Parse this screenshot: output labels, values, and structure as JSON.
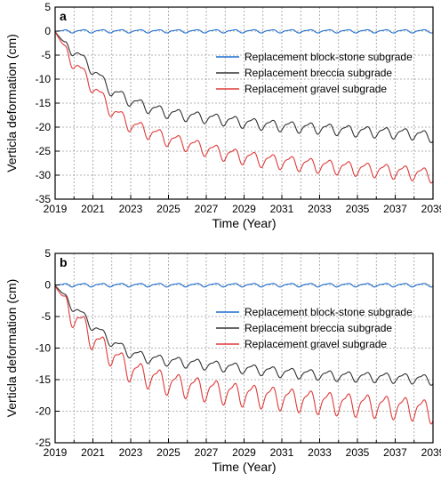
{
  "chart_data": [
    {
      "type": "line",
      "panel_label": "a",
      "xlabel": "Time (Year)",
      "ylabel": "Verticla deformation (cm)",
      "xlim": [
        2019,
        2039
      ],
      "ylim": [
        -35,
        5
      ],
      "xticks": [
        "2019",
        "2021",
        "2023",
        "2025",
        "2027",
        "2029",
        "2031",
        "2033",
        "2035",
        "2037",
        "2039"
      ],
      "yticks": [
        "5",
        "0",
        "-5",
        "-10",
        "-15",
        "-20",
        "-25",
        "-30",
        "-35"
      ],
      "grid": true,
      "legend_position": "upper-right",
      "series": [
        {
          "name": "Replacement block-stone subgrade",
          "color": "#1f6fd1",
          "x": [
            2019,
            2039
          ],
          "y": [
            0,
            0
          ],
          "oscillation": 0.3
        },
        {
          "name": "Replacement breccia subgrade",
          "color": "#333333",
          "x": [
            2019,
            2019.5,
            2020,
            2020.5,
            2021,
            2022,
            2023,
            2024,
            2025,
            2026,
            2027,
            2028,
            2029,
            2030,
            2031,
            2032,
            2033,
            2034,
            2035,
            2036,
            2037,
            2038,
            2039
          ],
          "y": [
            0,
            -3,
            -4,
            -6,
            -8,
            -12.5,
            -14.5,
            -16,
            -17,
            -17.6,
            -18,
            -18.5,
            -19,
            -19.4,
            -19.7,
            -20,
            -20.2,
            -20.5,
            -20.8,
            -21,
            -21.2,
            -21.4,
            -22
          ],
          "oscillation": 1.0
        },
        {
          "name": "Replacement gravel subgrade",
          "color": "#e03a3a",
          "x": [
            2019,
            2019.5,
            2020,
            2020.5,
            2021,
            2022,
            2023,
            2024,
            2025,
            2026,
            2027,
            2028,
            2029,
            2030,
            2031,
            2032,
            2033,
            2034,
            2035,
            2036,
            2037,
            2038,
            2039
          ],
          "y": [
            0,
            -4,
            -6.5,
            -9,
            -11.5,
            -16.5,
            -19.5,
            -21,
            -22.5,
            -23.5,
            -24.5,
            -25.5,
            -26.2,
            -26.8,
            -27.2,
            -27.6,
            -28,
            -28.3,
            -28.6,
            -28.9,
            -29.2,
            -29.5,
            -30
          ],
          "oscillation": 1.3
        }
      ]
    },
    {
      "type": "line",
      "panel_label": "b",
      "xlabel": "Time (Year)",
      "ylabel": "Verticla deformation (cm)",
      "xlim": [
        2019,
        2039
      ],
      "ylim": [
        -25,
        5
      ],
      "xticks": [
        "2019",
        "2021",
        "2023",
        "2025",
        "2027",
        "2029",
        "2031",
        "2033",
        "2035",
        "2037",
        "2039"
      ],
      "yticks": [
        "5",
        "0",
        "-5",
        "-10",
        "-15",
        "-20",
        "-25"
      ],
      "grid": true,
      "legend_position": "right",
      "series": [
        {
          "name": "Replacement block-stone subgrade",
          "color": "#1f6fd1",
          "x": [
            2019,
            2039
          ],
          "y": [
            0,
            0
          ],
          "oscillation": 0.25
        },
        {
          "name": "Replacement breccia subgrade",
          "color": "#333333",
          "x": [
            2019,
            2019.5,
            2020,
            2020.5,
            2021,
            2022,
            2023,
            2024,
            2025,
            2026,
            2027,
            2028,
            2029,
            2030,
            2031,
            2032,
            2033,
            2034,
            2035,
            2036,
            2037,
            2038,
            2039
          ],
          "y": [
            0,
            -2,
            -3.5,
            -5,
            -6.5,
            -9,
            -10.8,
            -11.6,
            -12,
            -12.3,
            -12.6,
            -12.9,
            -13.2,
            -13.5,
            -13.8,
            -14,
            -14.2,
            -14.4,
            -14.5,
            -14.6,
            -14.7,
            -14.8,
            -15
          ],
          "oscillation": 0.7
        },
        {
          "name": "Replacement gravel subgrade",
          "color": "#e03a3a",
          "x": [
            2019,
            2019.5,
            2020,
            2020.5,
            2021,
            2022,
            2023,
            2024,
            2025,
            2026,
            2027,
            2028,
            2029,
            2030,
            2031,
            2032,
            2033,
            2034,
            2035,
            2036,
            2037,
            2038,
            2039
          ],
          "y": [
            0,
            -3,
            -5,
            -6.5,
            -8.5,
            -11,
            -13.5,
            -14.5,
            -15.5,
            -16,
            -16.5,
            -17,
            -17.3,
            -17.6,
            -17.9,
            -18.2,
            -18.5,
            -18.7,
            -18.9,
            -19.1,
            -19.3,
            -19.5,
            -20
          ],
          "oscillation": 1.6
        }
      ]
    }
  ]
}
